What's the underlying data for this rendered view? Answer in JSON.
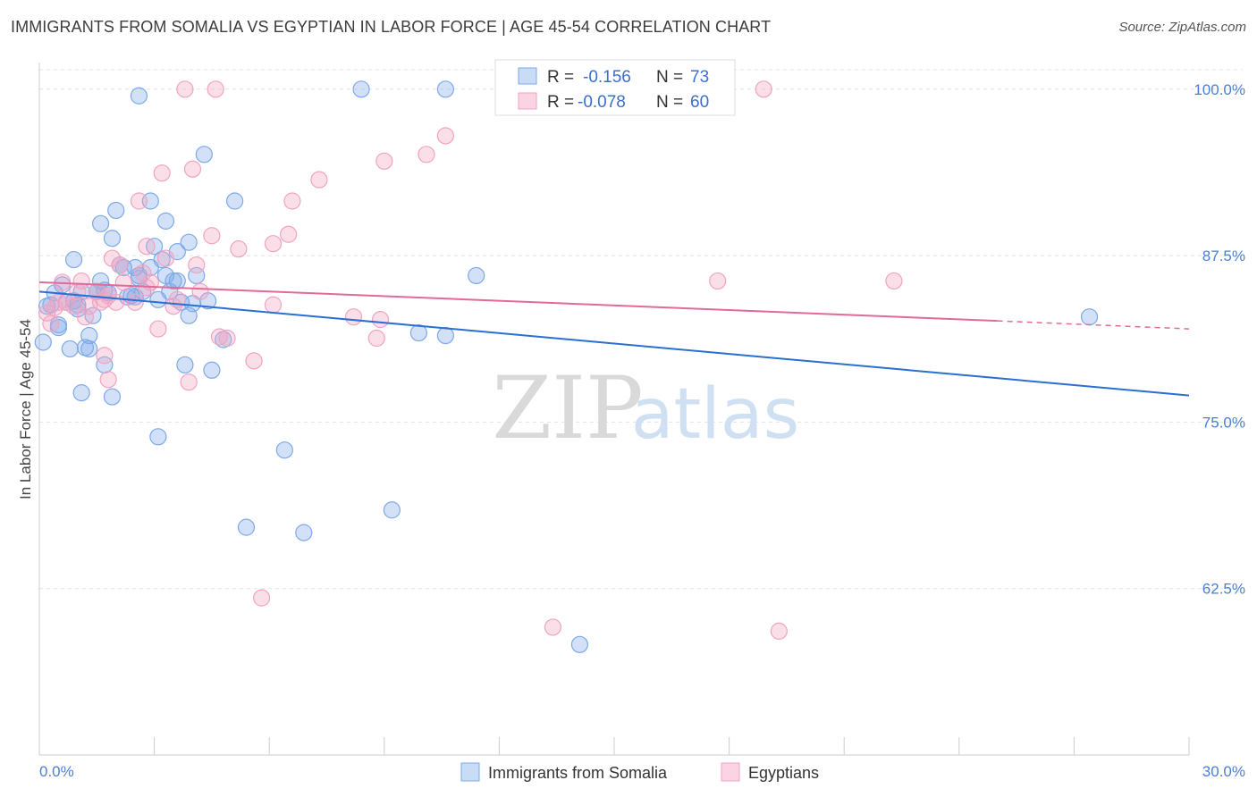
{
  "title": "IMMIGRANTS FROM SOMALIA VS EGYPTIAN IN LABOR FORCE | AGE 45-54 CORRELATION CHART",
  "source": "Source: ZipAtlas.com",
  "watermark": {
    "zip": "ZIP",
    "atlas": "atlas"
  },
  "chart_data": {
    "type": "scatter",
    "ylabel": "In Labor Force | Age 45-54",
    "xlim": [
      0,
      30
    ],
    "ylim": [
      50,
      102
    ],
    "y_ticks": [
      62.5,
      75.0,
      87.5,
      100.0
    ],
    "y_tick_labels": [
      "62.5%",
      "75.0%",
      "87.5%",
      "100.0%"
    ],
    "x_tick_labels": [
      "0.0%",
      "30.0%"
    ],
    "x_minor_ticks": [
      3,
      6,
      9,
      12,
      15,
      18,
      21,
      24,
      27,
      30
    ],
    "grid": true,
    "legend_position": "top-center",
    "stats": [
      {
        "r_label": "R =",
        "r": "-0.156",
        "n_label": "N =",
        "n": "73"
      },
      {
        "r_label": "R =",
        "r": "-0.078",
        "n_label": "N =",
        "n": "60"
      }
    ],
    "series": [
      {
        "name": "Immigrants from Somalia",
        "color": "#7ea9e8",
        "line_color": "#2a6fd1",
        "trend": {
          "x0": 0,
          "y0": 84.8,
          "x1": 30,
          "y1": 77.0
        },
        "points": [
          [
            0.1,
            81.0
          ],
          [
            0.3,
            83.8
          ],
          [
            0.5,
            82.3
          ],
          [
            0.6,
            85.3
          ],
          [
            0.7,
            84.0
          ],
          [
            0.8,
            80.5
          ],
          [
            0.9,
            87.2
          ],
          [
            1.0,
            83.8
          ],
          [
            1.1,
            84.8
          ],
          [
            1.1,
            77.2
          ],
          [
            1.2,
            80.6
          ],
          [
            1.3,
            80.5
          ],
          [
            1.3,
            81.5
          ],
          [
            1.4,
            83.0
          ],
          [
            1.5,
            84.8
          ],
          [
            1.6,
            89.9
          ],
          [
            1.6,
            85.6
          ],
          [
            1.7,
            79.3
          ],
          [
            1.8,
            84.7
          ],
          [
            1.9,
            88.8
          ],
          [
            1.9,
            76.9
          ],
          [
            2.0,
            90.9
          ],
          [
            2.1,
            86.8
          ],
          [
            2.2,
            86.6
          ],
          [
            2.3,
            84.4
          ],
          [
            2.5,
            84.4
          ],
          [
            2.5,
            86.6
          ],
          [
            2.6,
            99.5
          ],
          [
            2.6,
            86.0
          ],
          [
            2.7,
            84.8
          ],
          [
            2.9,
            86.6
          ],
          [
            2.9,
            91.6
          ],
          [
            3.0,
            88.2
          ],
          [
            3.1,
            84.2
          ],
          [
            3.1,
            73.9
          ],
          [
            3.2,
            87.2
          ],
          [
            3.3,
            86.0
          ],
          [
            3.3,
            90.1
          ],
          [
            3.5,
            85.6
          ],
          [
            3.6,
            85.6
          ],
          [
            3.6,
            87.8
          ],
          [
            3.8,
            79.3
          ],
          [
            3.9,
            88.5
          ],
          [
            3.9,
            83.0
          ],
          [
            4.0,
            83.9
          ],
          [
            4.1,
            86.0
          ],
          [
            4.3,
            95.1
          ],
          [
            4.4,
            84.1
          ],
          [
            4.5,
            78.9
          ],
          [
            4.8,
            81.2
          ],
          [
            5.1,
            91.6
          ],
          [
            5.4,
            67.1
          ],
          [
            6.4,
            72.9
          ],
          [
            6.9,
            66.7
          ],
          [
            8.4,
            100.0
          ],
          [
            9.2,
            68.4
          ],
          [
            9.9,
            81.7
          ],
          [
            10.6,
            100.0
          ],
          [
            10.6,
            81.5
          ],
          [
            11.4,
            86.0
          ],
          [
            14.1,
            58.3
          ],
          [
            27.4,
            82.9
          ],
          [
            0.2,
            83.7
          ],
          [
            0.4,
            84.7
          ],
          [
            0.5,
            82.1
          ],
          [
            0.9,
            84.1
          ],
          [
            1.5,
            84.8
          ],
          [
            2.4,
            84.5
          ],
          [
            1.0,
            83.5
          ],
          [
            3.4,
            84.8
          ],
          [
            1.7,
            84.9
          ],
          [
            3.7,
            84.0
          ],
          [
            2.6,
            85.8
          ]
        ]
      },
      {
        "name": "Egyptians",
        "color": "#f1a3c1",
        "line_color": "#e06a98",
        "trend": {
          "x0": 0,
          "y0": 85.5,
          "x1": 25.0,
          "y1": 82.6
        },
        "trend_dash": {
          "x0": 25.0,
          "y0": 82.6,
          "x1": 30,
          "y1": 82.0
        },
        "points": [
          [
            0.2,
            83.2
          ],
          [
            0.3,
            82.4
          ],
          [
            0.4,
            83.6
          ],
          [
            0.5,
            84.0
          ],
          [
            0.6,
            85.5
          ],
          [
            0.7,
            84.0
          ],
          [
            0.9,
            83.7
          ],
          [
            1.0,
            84.8
          ],
          [
            1.1,
            85.6
          ],
          [
            1.2,
            82.9
          ],
          [
            1.3,
            83.7
          ],
          [
            1.5,
            84.8
          ],
          [
            1.6,
            84.0
          ],
          [
            1.7,
            84.2
          ],
          [
            1.7,
            80.0
          ],
          [
            1.8,
            84.5
          ],
          [
            1.8,
            78.2
          ],
          [
            1.9,
            87.3
          ],
          [
            2.0,
            84.0
          ],
          [
            2.1,
            86.8
          ],
          [
            2.2,
            85.5
          ],
          [
            2.5,
            84.0
          ],
          [
            2.6,
            91.6
          ],
          [
            2.7,
            86.2
          ],
          [
            2.8,
            88.2
          ],
          [
            2.8,
            85.1
          ],
          [
            2.9,
            85.5
          ],
          [
            3.1,
            82.0
          ],
          [
            3.2,
            93.7
          ],
          [
            3.3,
            87.3
          ],
          [
            3.5,
            83.7
          ],
          [
            3.6,
            84.2
          ],
          [
            3.8,
            100.0
          ],
          [
            3.9,
            78.0
          ],
          [
            4.0,
            94.0
          ],
          [
            4.1,
            86.8
          ],
          [
            4.2,
            84.8
          ],
          [
            4.5,
            89.0
          ],
          [
            4.6,
            100.0
          ],
          [
            4.7,
            81.4
          ],
          [
            4.9,
            81.3
          ],
          [
            5.2,
            88.0
          ],
          [
            5.6,
            79.6
          ],
          [
            5.8,
            61.8
          ],
          [
            6.1,
            88.4
          ],
          [
            6.1,
            83.8
          ],
          [
            6.5,
            89.1
          ],
          [
            6.6,
            91.6
          ],
          [
            7.3,
            93.2
          ],
          [
            8.2,
            82.9
          ],
          [
            8.8,
            81.3
          ],
          [
            8.9,
            82.7
          ],
          [
            9.0,
            94.6
          ],
          [
            10.1,
            95.1
          ],
          [
            10.6,
            96.5
          ],
          [
            13.4,
            59.6
          ],
          [
            17.7,
            85.6
          ],
          [
            18.9,
            100.0
          ],
          [
            19.3,
            59.3
          ],
          [
            22.3,
            85.6
          ]
        ]
      }
    ]
  }
}
